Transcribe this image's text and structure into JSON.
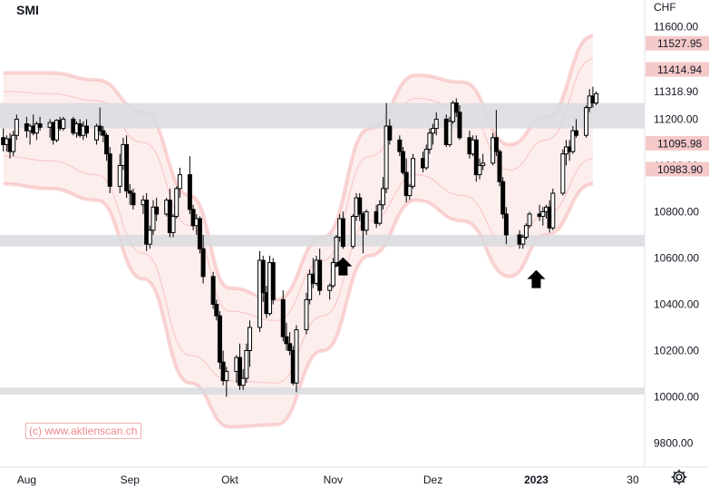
{
  "symbol": "SMI",
  "currency": "CHF",
  "watermark": "(c) www.aktienscan.ch",
  "icons": {
    "settings": "gear-icon",
    "arrows": "arrow-up-icon"
  },
  "colors": {
    "band": "#f5a3a3",
    "band_fill": "#fdeeee",
    "badge_bg": "#f6c9c9",
    "zone": "#d9dadf",
    "candle": "#000000",
    "text": "#131722"
  },
  "chart_data": {
    "type": "candlestick",
    "title": "SMI",
    "ylabel": "CHF",
    "ylim": [
      9700,
      11650
    ],
    "y_ticks": [
      "11600.00",
      "11318.90",
      "11200.00",
      "10800.00",
      "10600.00",
      "10400.00",
      "10200.00",
      "10000.00",
      "9800.00"
    ],
    "x_labels": [
      {
        "date": "2022-08-01",
        "label": "Aug"
      },
      {
        "date": "2022-09-01",
        "label": "Sep"
      },
      {
        "date": "2022-10-01",
        "label": "Okt"
      },
      {
        "date": "2022-11-01",
        "label": "Nov"
      },
      {
        "date": "2022-12-01",
        "label": "Dez"
      },
      {
        "date": "2023-01-01",
        "label": "2023",
        "bold": true
      },
      {
        "date": "2023-01-30",
        "label": "30"
      }
    ],
    "price_badges": [
      "11527.95",
      "11414.94",
      "11095.98",
      "10983.90"
    ],
    "price_badge_values": [
      11527.95,
      11414.94,
      11095.98,
      10983.9
    ],
    "partially_hidden_label": "11000.00",
    "zones": [
      {
        "low": 11160,
        "high": 11270
      },
      {
        "low": 10650,
        "high": 10700
      },
      {
        "low": 10010,
        "high": 10040
      }
    ],
    "arrows": [
      {
        "date": "2022-11-04",
        "price": 10560
      },
      {
        "date": "2023-01-01",
        "price": 10505
      }
    ],
    "bands": [
      {
        "name": "outer_upper",
        "values": [
          11400,
          11400,
          11370,
          11230,
          10870,
          10470,
          10420,
          10690,
          11160,
          11390,
          11360,
          11090,
          11210,
          11560
        ]
      },
      {
        "name": "mid_upper",
        "values": [
          11320,
          11310,
          11280,
          11100,
          10740,
          10370,
          10330,
          10590,
          11040,
          11290,
          11250,
          10980,
          11110,
          11460
        ]
      },
      {
        "name": "mid_lower",
        "values": [
          11040,
          11020,
          10960,
          10620,
          10180,
          10070,
          10060,
          10350,
          10760,
          10960,
          10870,
          10650,
          10790,
          11030
        ]
      },
      {
        "name": "outer_lower",
        "values": [
          10920,
          10900,
          10850,
          10510,
          10060,
          9870,
          9880,
          10200,
          10610,
          10850,
          10760,
          10520,
          10700,
          10920
        ]
      }
    ],
    "band_dates": [
      "2022-07-25",
      "2022-08-08",
      "2022-08-22",
      "2022-09-05",
      "2022-09-19",
      "2022-10-01",
      "2022-10-15",
      "2022-10-29",
      "2022-11-12",
      "2022-11-26",
      "2022-12-10",
      "2022-12-24",
      "2023-01-04",
      "2023-01-18"
    ],
    "candles": [
      [
        "2022-07-25",
        11120,
        11160,
        11060,
        11090
      ],
      [
        "2022-07-26",
        11090,
        11130,
        11060,
        11115
      ],
      [
        "2022-07-27",
        11115,
        11140,
        11030,
        11060
      ],
      [
        "2022-07-28",
        11060,
        11150,
        11040,
        11130
      ],
      [
        "2022-07-29",
        11130,
        11220,
        11110,
        11200
      ],
      [
        "2022-08-01",
        11180,
        11210,
        11120,
        11150
      ],
      [
        "2022-08-02",
        11150,
        11180,
        11090,
        11170
      ],
      [
        "2022-08-03",
        11170,
        11220,
        11130,
        11140
      ],
      [
        "2022-08-04",
        11140,
        11190,
        11110,
        11180
      ],
      [
        "2022-08-05",
        11180,
        11210,
        11150,
        11165
      ],
      [
        "2022-08-08",
        11165,
        11200,
        11120,
        11185
      ],
      [
        "2022-08-09",
        11185,
        11190,
        11090,
        11110
      ],
      [
        "2022-08-10",
        11110,
        11200,
        11100,
        11195
      ],
      [
        "2022-08-11",
        11195,
        11210,
        11150,
        11160
      ],
      [
        "2022-08-12",
        11160,
        11210,
        11150,
        11200
      ],
      [
        "2022-08-15",
        11200,
        11210,
        11130,
        11140
      ],
      [
        "2022-08-16",
        11140,
        11190,
        11120,
        11180
      ],
      [
        "2022-08-17",
        11180,
        11200,
        11120,
        11130
      ],
      [
        "2022-08-18",
        11130,
        11190,
        11110,
        11170
      ],
      [
        "2022-08-19",
        11170,
        11200,
        11120,
        11140
      ],
      [
        "2022-08-22",
        11110,
        11180,
        11090,
        11170
      ],
      [
        "2022-08-23",
        11170,
        11250,
        11130,
        11150
      ],
      [
        "2022-08-24",
        11150,
        11170,
        11100,
        11130
      ],
      [
        "2022-08-25",
        11130,
        11140,
        11020,
        11050
      ],
      [
        "2022-08-26",
        11050,
        11080,
        10880,
        10910
      ],
      [
        "2022-08-29",
        10910,
        11050,
        10880,
        11000
      ],
      [
        "2022-08-30",
        11000,
        11120,
        10980,
        11090
      ],
      [
        "2022-08-31",
        11090,
        11130,
        10860,
        10890
      ],
      [
        "2022-09-01",
        10890,
        10920,
        10830,
        10880
      ],
      [
        "2022-09-02",
        10880,
        10900,
        10810,
        10830
      ],
      [
        "2022-09-05",
        10830,
        10870,
        10790,
        10850
      ],
      [
        "2022-09-06",
        10850,
        10880,
        10630,
        10660
      ],
      [
        "2022-09-07",
        10660,
        10740,
        10640,
        10720
      ],
      [
        "2022-09-08",
        10720,
        10850,
        10700,
        10820
      ],
      [
        "2022-09-09",
        10820,
        10860,
        10760,
        10790
      ],
      [
        "2022-09-12",
        10790,
        10860,
        10780,
        10850
      ],
      [
        "2022-09-13",
        10850,
        10900,
        10690,
        10710
      ],
      [
        "2022-09-14",
        10710,
        10790,
        10690,
        10780
      ],
      [
        "2022-09-15",
        10780,
        10910,
        10770,
        10900
      ],
      [
        "2022-09-16",
        10900,
        10990,
        10860,
        10960
      ],
      [
        "2022-09-19",
        10960,
        11040,
        10790,
        10810
      ],
      [
        "2022-09-20",
        10810,
        10830,
        10720,
        10740
      ],
      [
        "2022-09-21",
        10740,
        10790,
        10700,
        10770
      ],
      [
        "2022-09-22",
        10770,
        10780,
        10620,
        10640
      ],
      [
        "2022-09-23",
        10640,
        10700,
        10490,
        10520
      ],
      [
        "2022-09-26",
        10520,
        10540,
        10380,
        10400
      ],
      [
        "2022-09-27",
        10400,
        10420,
        10330,
        10350
      ],
      [
        "2022-09-28",
        10350,
        10370,
        10120,
        10150
      ],
      [
        "2022-09-29",
        10150,
        10200,
        10050,
        10070
      ],
      [
        "2022-09-30",
        10070,
        10130,
        10000,
        10110
      ],
      [
        "2022-10-03",
        10110,
        10180,
        10060,
        10170
      ],
      [
        "2022-10-04",
        10170,
        10230,
        10030,
        10050
      ],
      [
        "2022-10-05",
        10050,
        10120,
        10030,
        10080
      ],
      [
        "2022-10-06",
        10080,
        10230,
        10060,
        10200
      ],
      [
        "2022-10-07",
        10200,
        10330,
        10130,
        10300
      ],
      [
        "2022-10-10",
        10300,
        10630,
        10280,
        10590
      ],
      [
        "2022-10-11",
        10590,
        10610,
        10410,
        10450
      ],
      [
        "2022-10-12",
        10450,
        10480,
        10340,
        10360
      ],
      [
        "2022-10-13",
        10360,
        10610,
        10350,
        10580
      ],
      [
        "2022-10-14",
        10580,
        10600,
        10400,
        10420
      ],
      [
        "2022-10-17",
        10420,
        10460,
        10240,
        10260
      ],
      [
        "2022-10-18",
        10260,
        10320,
        10200,
        10230
      ],
      [
        "2022-10-19",
        10230,
        10280,
        10180,
        10200
      ],
      [
        "2022-10-20",
        10200,
        10220,
        10050,
        10060
      ],
      [
        "2022-10-21",
        10060,
        10310,
        10020,
        10290
      ],
      [
        "2022-10-24",
        10290,
        10450,
        10270,
        10420
      ],
      [
        "2022-10-25",
        10420,
        10550,
        10400,
        10530
      ],
      [
        "2022-10-26",
        10530,
        10600,
        10470,
        10490
      ],
      [
        "2022-10-27",
        10490,
        10610,
        10480,
        10590
      ],
      [
        "2022-10-28",
        10590,
        10640,
        10440,
        10460
      ],
      [
        "2022-10-31",
        10460,
        10490,
        10420,
        10480
      ],
      [
        "2022-11-01",
        10480,
        10600,
        10470,
        10580
      ],
      [
        "2022-11-02",
        10580,
        10700,
        10560,
        10690
      ],
      [
        "2022-11-03",
        10690,
        10790,
        10670,
        10770
      ],
      [
        "2022-11-04",
        10770,
        10800,
        10640,
        10650
      ],
      [
        "2022-11-07",
        10650,
        10790,
        10640,
        10780
      ],
      [
        "2022-11-08",
        10780,
        10880,
        10760,
        10860
      ],
      [
        "2022-11-09",
        10860,
        10880,
        10760,
        10790
      ],
      [
        "2022-11-10",
        10790,
        10800,
        10620,
        10720
      ],
      [
        "2022-11-11",
        10720,
        10810,
        10700,
        10800
      ],
      [
        "2022-11-14",
        10800,
        10830,
        10730,
        10750
      ],
      [
        "2022-11-15",
        10750,
        10850,
        10740,
        10830
      ],
      [
        "2022-11-16",
        10830,
        10950,
        10810,
        10900
      ],
      [
        "2022-11-17",
        10900,
        11270,
        10880,
        11170
      ],
      [
        "2022-11-18",
        11170,
        11200,
        11090,
        11110
      ],
      [
        "2022-11-21",
        11110,
        11130,
        11040,
        11060
      ],
      [
        "2022-11-22",
        11060,
        11080,
        10960,
        10970
      ],
      [
        "2022-11-23",
        10970,
        11030,
        10840,
        10870
      ],
      [
        "2022-11-24",
        10870,
        10920,
        10850,
        10910
      ],
      [
        "2022-11-25",
        10910,
        11050,
        10900,
        11030
      ],
      [
        "2022-11-28",
        11030,
        11060,
        10970,
        10990
      ],
      [
        "2022-11-29",
        10990,
        11090,
        10980,
        11070
      ],
      [
        "2022-11-30",
        11070,
        11160,
        11050,
        11140
      ],
      [
        "2022-12-01",
        11140,
        11180,
        11090,
        11160
      ],
      [
        "2022-12-02",
        11160,
        11230,
        11130,
        11200
      ],
      [
        "2022-12-05",
        11200,
        11220,
        11080,
        11090
      ],
      [
        "2022-12-06",
        11090,
        11210,
        11080,
        11190
      ],
      [
        "2022-12-07",
        11190,
        11280,
        11180,
        11270
      ],
      [
        "2022-12-08",
        11270,
        11290,
        11210,
        11230
      ],
      [
        "2022-12-09",
        11230,
        11260,
        11110,
        11120
      ],
      [
        "2022-12-12",
        11120,
        11150,
        11030,
        11050
      ],
      [
        "2022-12-13",
        11050,
        11130,
        11040,
        11110
      ],
      [
        "2022-12-14",
        11110,
        11130,
        10930,
        10960
      ],
      [
        "2022-12-15",
        10960,
        11030,
        10940,
        11000
      ],
      [
        "2022-12-16",
        11000,
        11050,
        10980,
        11010
      ],
      [
        "2022-12-19",
        11010,
        11140,
        11000,
        11120
      ],
      [
        "2022-12-20",
        11120,
        11240,
        11040,
        11060
      ],
      [
        "2022-12-21",
        11060,
        11070,
        10910,
        10930
      ],
      [
        "2022-12-22",
        10930,
        10950,
        10770,
        10790
      ],
      [
        "2022-12-23",
        10790,
        10820,
        10660,
        10700
      ],
      [
        "2022-12-27",
        10700,
        10720,
        10640,
        10660
      ],
      [
        "2022-12-28",
        10660,
        10700,
        10640,
        10690
      ],
      [
        "2022-12-29",
        10690,
        10750,
        10680,
        10740
      ],
      [
        "2022-12-30",
        10740,
        10800,
        10730,
        10790
      ],
      [
        "2023-01-02",
        10790,
        10830,
        10760,
        10780
      ],
      [
        "2023-01-03",
        10780,
        10820,
        10740,
        10800
      ],
      [
        "2023-01-04",
        10800,
        10830,
        10770,
        10820
      ],
      [
        "2023-01-05",
        10820,
        10850,
        10710,
        10730
      ],
      [
        "2023-01-06",
        10730,
        10900,
        10720,
        10880
      ],
      [
        "2023-01-09",
        10880,
        11070,
        10870,
        11050
      ],
      [
        "2023-01-10",
        11050,
        11110,
        11000,
        11080
      ],
      [
        "2023-01-11",
        11080,
        11110,
        11020,
        11060
      ],
      [
        "2023-01-12",
        11060,
        11170,
        11050,
        11150
      ],
      [
        "2023-01-13",
        11150,
        11200,
        11120,
        11130
      ],
      [
        "2023-01-16",
        11130,
        11260,
        11120,
        11250
      ],
      [
        "2023-01-17",
        11250,
        11330,
        11230,
        11300
      ],
      [
        "2023-01-18",
        11300,
        11340,
        11250,
        11270
      ],
      [
        "2023-01-19",
        11270,
        11320,
        11260,
        11310
      ]
    ]
  }
}
